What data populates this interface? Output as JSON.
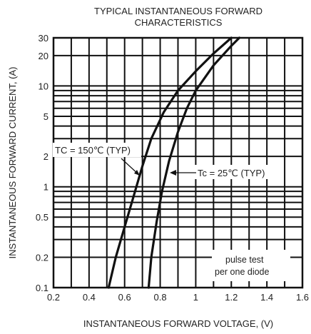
{
  "chart_data": {
    "type": "line",
    "title": "TYPICAL INSTANTANEOUS FORWARD CHARACTERISTICS",
    "title_lines": [
      "TYPICAL INSTANTANEOUS FORWARD",
      "CHARACTERISTICS"
    ],
    "xlabel": "INSTANTANEOUS FORWARD VOLTAGE, (V)",
    "ylabel": "INSTANTANEOUS FORWARD CURRENT, (A)",
    "xlim": [
      0.2,
      1.6
    ],
    "ylim": [
      0.1,
      30
    ],
    "y_scale": "log",
    "grid": true,
    "x_ticks": [
      0.2,
      0.4,
      0.6,
      0.8,
      1.0,
      1.2,
      1.4,
      1.6
    ],
    "x_tick_labels": [
      "0.2",
      "0.4",
      "0.6",
      "0.8",
      "1",
      "1.2",
      "1.4",
      "1.6"
    ],
    "y_ticks": [
      0.1,
      0.2,
      0.5,
      1,
      2,
      5,
      10,
      20,
      30
    ],
    "y_tick_labels": [
      "0.1",
      "0.2",
      "0.5",
      "1",
      "2",
      "5",
      "10",
      "20",
      "30"
    ],
    "series": [
      {
        "name": "TC = 150℃ (TYP)",
        "x": [
          0.51,
          0.55,
          0.6,
          0.65,
          0.7,
          0.75,
          0.82,
          0.9,
          1.0,
          1.1,
          1.2
        ],
        "y": [
          0.1,
          0.2,
          0.4,
          0.8,
          1.6,
          3.0,
          5.5,
          9.0,
          14,
          21,
          30
        ]
      },
      {
        "name": "Tc = 25℃ (TYP)",
        "x": [
          0.735,
          0.75,
          0.78,
          0.81,
          0.85,
          0.9,
          0.95,
          1.0,
          1.1,
          1.2,
          1.245
        ],
        "y": [
          0.1,
          0.2,
          0.45,
          0.9,
          1.8,
          3.5,
          6.0,
          9.0,
          16,
          25,
          30
        ]
      }
    ],
    "annotations": {
      "label_150": "TC = 150℃ (TYP)",
      "label_25": "Tc = 25℃ (TYP)",
      "note_line1": "pulse test",
      "note_line2": "per one diode"
    }
  }
}
